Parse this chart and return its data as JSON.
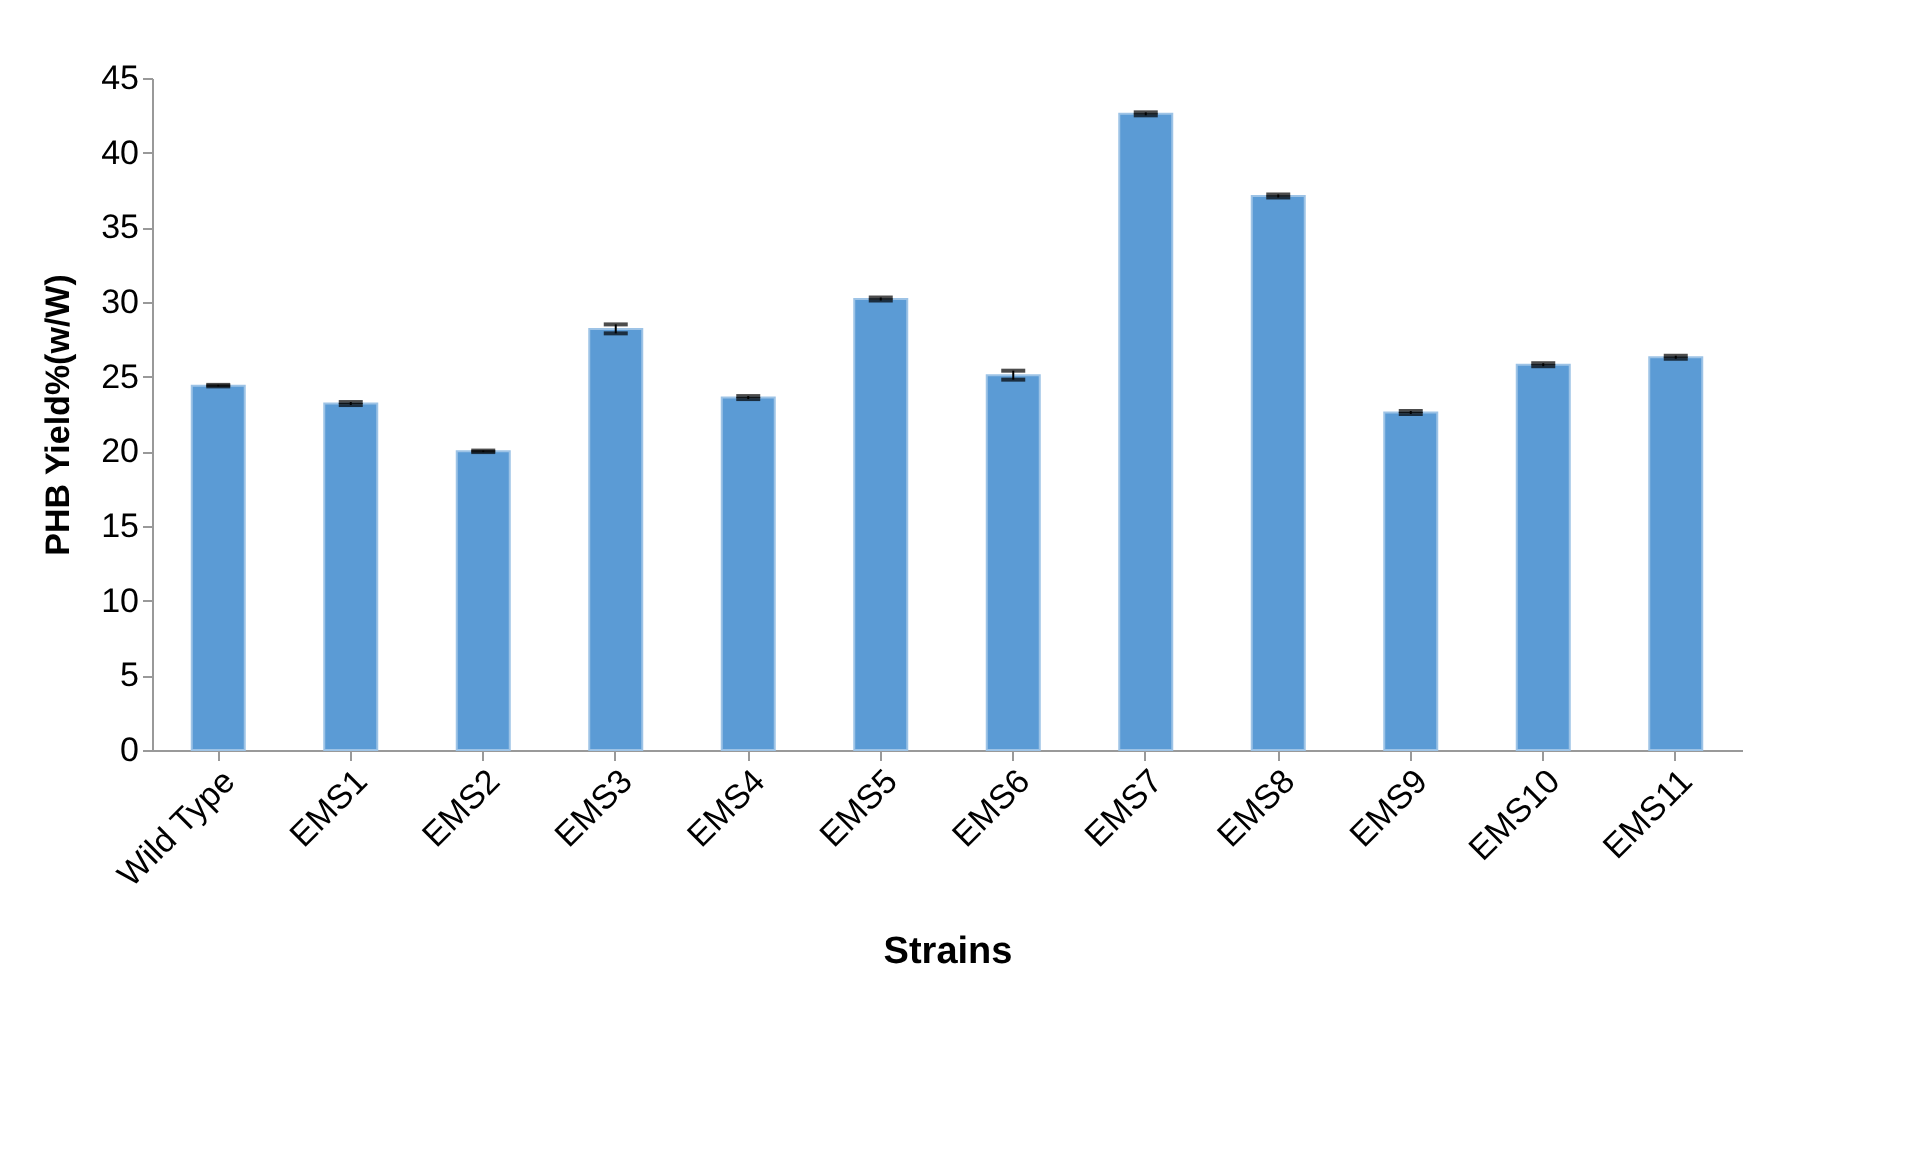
{
  "chart_data": {
    "type": "bar",
    "xlabel": "Strains",
    "ylabel": "PHB Yield%(w/W)",
    "categories": [
      "Wild Type",
      "EMS1",
      "EMS2",
      "EMS3",
      "EMS4",
      "EMS5",
      "EMS6",
      "EMS7",
      "EMS8",
      "EMS9",
      "EMS10",
      "EMS11"
    ],
    "values": [
      24.4,
      23.2,
      20.0,
      28.2,
      23.6,
      30.2,
      25.1,
      42.6,
      37.1,
      22.6,
      25.8,
      26.3
    ],
    "errors": [
      0.05,
      0.1,
      0.05,
      0.3,
      0.1,
      0.1,
      0.3,
      0.1,
      0.1,
      0.1,
      0.1,
      0.1
    ],
    "color": "#5b9bd5",
    "ylim": [
      0,
      45
    ],
    "yticks": [
      0,
      5,
      10,
      15,
      20,
      25,
      30,
      35,
      40,
      45
    ],
    "grid": false
  }
}
